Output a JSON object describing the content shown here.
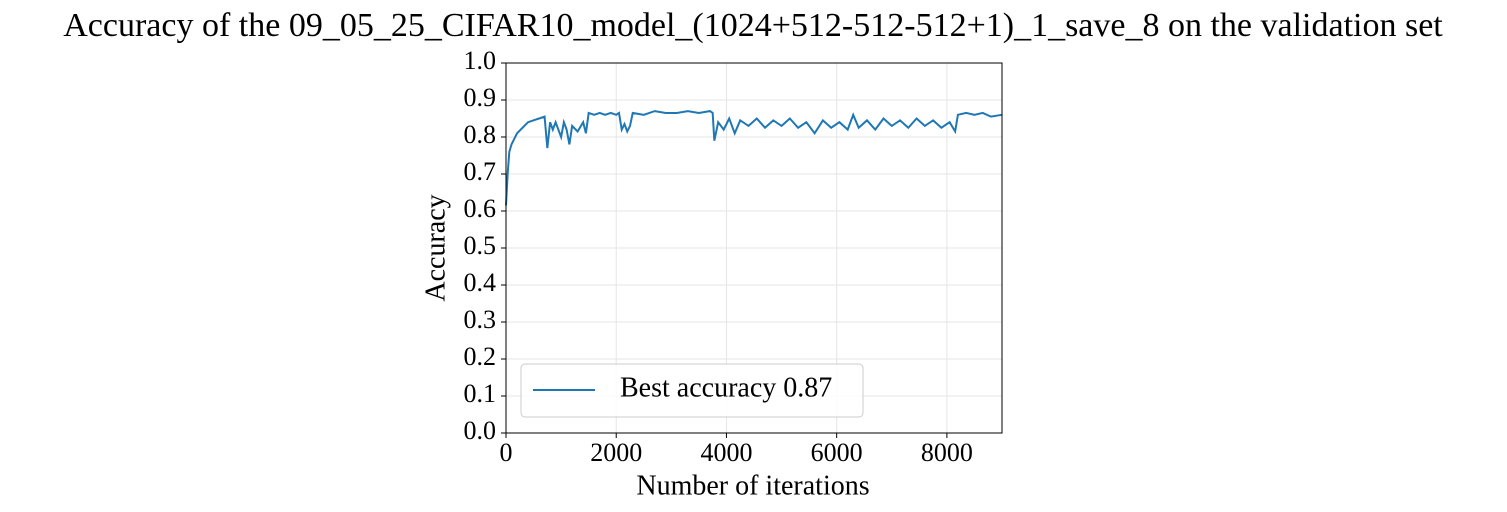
{
  "chart_data": {
    "type": "line",
    "title": "Accuracy of the 09_05_25_CIFAR10_model_(1024+512-512-512+1)_1_save_8 on the validation set",
    "xlabel": "Number of iterations",
    "ylabel": "Accuracy",
    "x": [
      0,
      30,
      60,
      100,
      200,
      300,
      400,
      500,
      600,
      700,
      750,
      800,
      850,
      900,
      1000,
      1050,
      1100,
      1150,
      1200,
      1300,
      1400,
      1450,
      1500,
      1600,
      1700,
      1800,
      1900,
      2000,
      2050,
      2100,
      2150,
      2200,
      2250,
      2300,
      2500,
      2700,
      2900,
      3100,
      3300,
      3500,
      3700,
      3750,
      3780,
      3850,
      3950,
      4050,
      4150,
      4250,
      4400,
      4550,
      4700,
      4850,
      5000,
      5150,
      5300,
      5450,
      5600,
      5750,
      5900,
      6050,
      6200,
      6300,
      6400,
      6550,
      6700,
      6850,
      7000,
      7150,
      7300,
      7450,
      7600,
      7750,
      7900,
      8050,
      8150,
      8200,
      8350,
      8500,
      8650,
      8800,
      9000
    ],
    "series": [
      {
        "name": "Best accuracy 0.87",
        "color": "#1f77b4",
        "values": [
          0.615,
          0.7,
          0.76,
          0.78,
          0.81,
          0.825,
          0.84,
          0.845,
          0.85,
          0.855,
          0.77,
          0.84,
          0.82,
          0.84,
          0.8,
          0.84,
          0.82,
          0.78,
          0.83,
          0.815,
          0.84,
          0.81,
          0.865,
          0.86,
          0.865,
          0.86,
          0.865,
          0.86,
          0.865,
          0.82,
          0.835,
          0.815,
          0.83,
          0.865,
          0.86,
          0.87,
          0.865,
          0.865,
          0.87,
          0.865,
          0.87,
          0.865,
          0.79,
          0.84,
          0.82,
          0.85,
          0.81,
          0.845,
          0.83,
          0.85,
          0.825,
          0.845,
          0.83,
          0.85,
          0.825,
          0.84,
          0.81,
          0.845,
          0.825,
          0.84,
          0.82,
          0.86,
          0.825,
          0.845,
          0.82,
          0.85,
          0.83,
          0.845,
          0.825,
          0.85,
          0.83,
          0.845,
          0.825,
          0.84,
          0.815,
          0.86,
          0.865,
          0.86,
          0.865,
          0.855,
          0.86
        ]
      }
    ],
    "xlim": [
      0,
      9000
    ],
    "xticks": [
      0,
      2000,
      4000,
      6000,
      8000
    ],
    "ylim": [
      0,
      1
    ],
    "yticks": [
      {
        "value": 0,
        "label": "0.0"
      },
      0.1,
      0.2,
      0.3,
      0.4,
      0.5,
      0.6,
      0.7,
      0.8,
      0.9,
      {
        "value": 1,
        "label": "1.0"
      }
    ],
    "grid": true,
    "legend": "lower left"
  }
}
